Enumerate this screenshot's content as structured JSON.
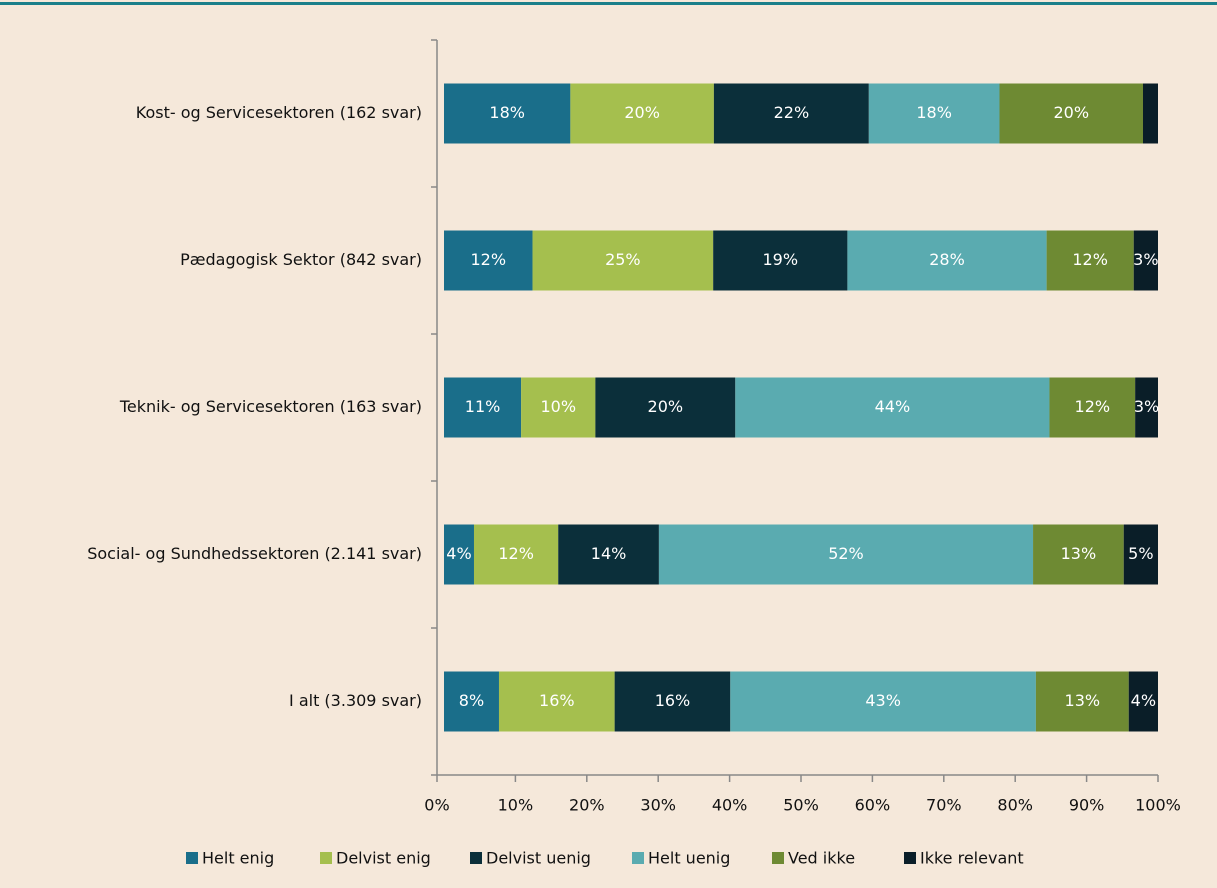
{
  "chart_data": {
    "type": "stacked-bar-horizontal",
    "categories": [
      "Kost- og Servicesektoren (162 svar)",
      "Pædagogisk Sektor (842 svar)",
      "Teknik- og Servicesektoren (163 svar)",
      "Social- og Sundhedssektoren (2.141 svar)",
      "I alt (3.309 svar)"
    ],
    "series": [
      {
        "name": "Helt enig",
        "color": "#1a6e8a",
        "values": [
          17.7,
          12.4,
          10.8,
          4.2,
          7.7
        ],
        "value_labels": [
          "18%",
          "12%",
          "11%",
          "4%",
          "8%"
        ]
      },
      {
        "name": "Delvist enig",
        "color": "#a5bf4e",
        "values": [
          20.1,
          25.3,
          10.4,
          11.8,
          16.2
        ],
        "value_labels": [
          "20%",
          "25%",
          "10%",
          "12%",
          "16%"
        ]
      },
      {
        "name": "Delvist uenig",
        "color": "#0b2f3a",
        "values": [
          21.7,
          18.8,
          19.6,
          14.1,
          16.2
        ],
        "value_labels": [
          "22%",
          "19%",
          "20%",
          "14%",
          "16%"
        ]
      },
      {
        "name": "Helt uenig",
        "color": "#5aabb0",
        "values": [
          18.3,
          27.9,
          44.0,
          52.4,
          42.8
        ],
        "value_labels": [
          "18%",
          "28%",
          "44%",
          "52%",
          "43%"
        ]
      },
      {
        "name": "Ved ikke",
        "color": "#6e8a33",
        "values": [
          20.1,
          12.2,
          12.0,
          12.7,
          13.0
        ],
        "value_labels": [
          "20%",
          "12%",
          "12%",
          "13%",
          "13%"
        ]
      },
      {
        "name": "Ikke relevant",
        "color": "#0a1e28",
        "values": [
          2.1,
          3.4,
          3.2,
          4.8,
          4.1
        ],
        "value_labels": [
          null,
          "3%",
          "3%",
          "5%",
          "4%"
        ]
      }
    ],
    "xlim": [
      0,
      100
    ],
    "xticks": [
      {
        "value": 0,
        "label": "0%"
      },
      {
        "value": 10,
        "label": "10%"
      },
      {
        "value": 20,
        "label": "20%"
      },
      {
        "value": 30,
        "label": "30%"
      },
      {
        "value": 40,
        "label": "40%"
      },
      {
        "value": 50,
        "label": "50%"
      },
      {
        "value": 60,
        "label": "60%"
      },
      {
        "value": 70,
        "label": "70%"
      },
      {
        "value": 80,
        "label": "80%"
      },
      {
        "value": 90,
        "label": "90%"
      },
      {
        "value": 100,
        "label": "100%"
      }
    ],
    "legend": "bottom"
  }
}
